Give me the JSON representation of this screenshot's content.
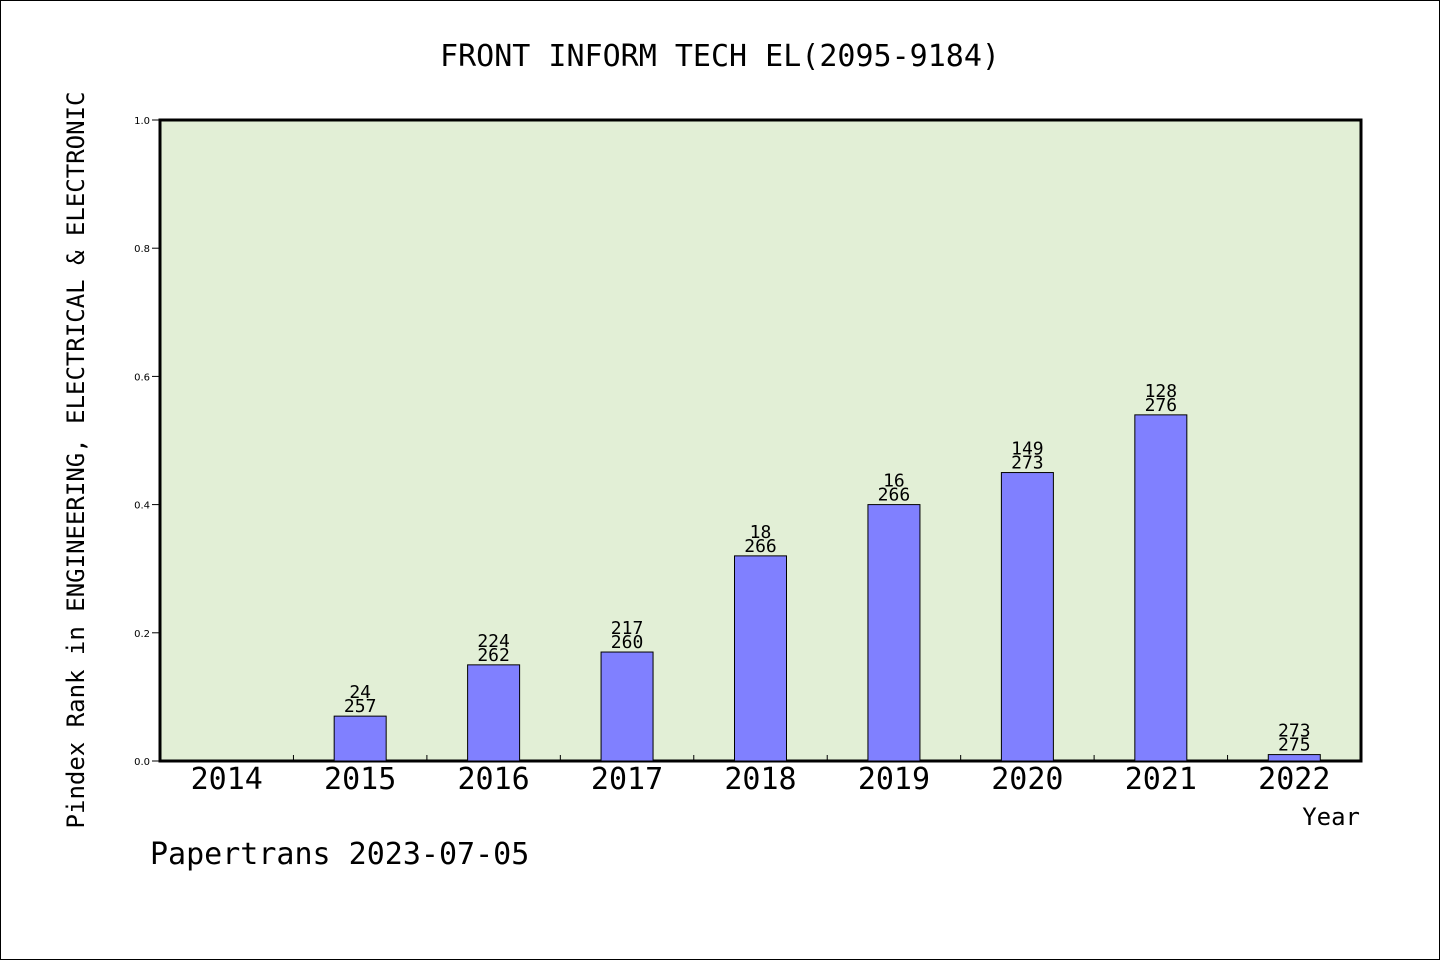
{
  "chart_data": {
    "type": "bar",
    "title": "FRONT INFORM TECH EL(2095-9184)",
    "ylabel": "Pindex Rank in ENGINEERING, ELECTRICAL & ELECTRONIC",
    "xlabel": "Year",
    "ylim": [
      0,
      1.0
    ],
    "yticks": [
      "0.0",
      "0.2",
      "0.4",
      "0.6",
      "0.8",
      "1.0"
    ],
    "grid": false,
    "categories": [
      "2014",
      "2015",
      "2016",
      "2017",
      "2018",
      "2019",
      "2020",
      "2021",
      "2022"
    ],
    "values": [
      0,
      0.07,
      0.15,
      0.17,
      0.32,
      0.4,
      0.45,
      0.54,
      0.01
    ],
    "labels_top": [
      "",
      "24",
      "224",
      "217",
      "18",
      "16",
      "149",
      "128",
      "273"
    ],
    "labels_bottom": [
      "",
      "257",
      "262",
      "260",
      "266",
      "266",
      "273",
      "276",
      "275"
    ],
    "colors": {
      "plot_bg": "#e2efd6",
      "bar": "#8080ff"
    }
  },
  "footer": "Papertrans 2023-07-05"
}
